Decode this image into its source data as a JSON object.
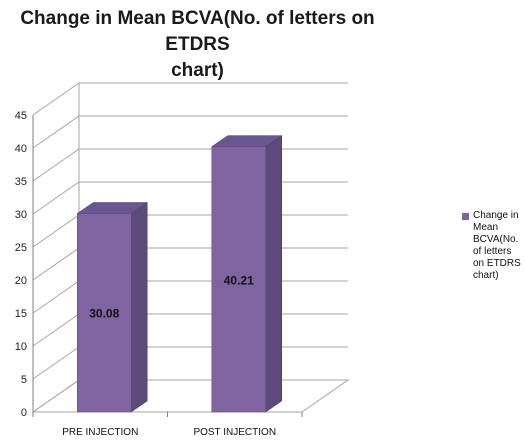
{
  "chart_data": {
    "type": "bar",
    "title_lines": [
      "Change in Mean BCVA(No. of letters on ETDRS",
      "chart)"
    ],
    "categories": [
      "PRE INJECTION",
      "POST INJECTION"
    ],
    "series": [
      {
        "name": "Change in Mean BCVA(No. of letters on ETDRS chart)",
        "values": [
          30.08,
          40.21
        ],
        "color": "#8064a2"
      }
    ],
    "data_labels": [
      "30.08",
      "40.21"
    ],
    "y_ticks": [
      "0",
      "5",
      "10",
      "15",
      "20",
      "25",
      "30",
      "35",
      "40",
      "45"
    ],
    "ylim": [
      0,
      45
    ],
    "xlabel": "",
    "ylabel": "",
    "grid": true,
    "legend_position": "right",
    "style": "3d-column"
  }
}
